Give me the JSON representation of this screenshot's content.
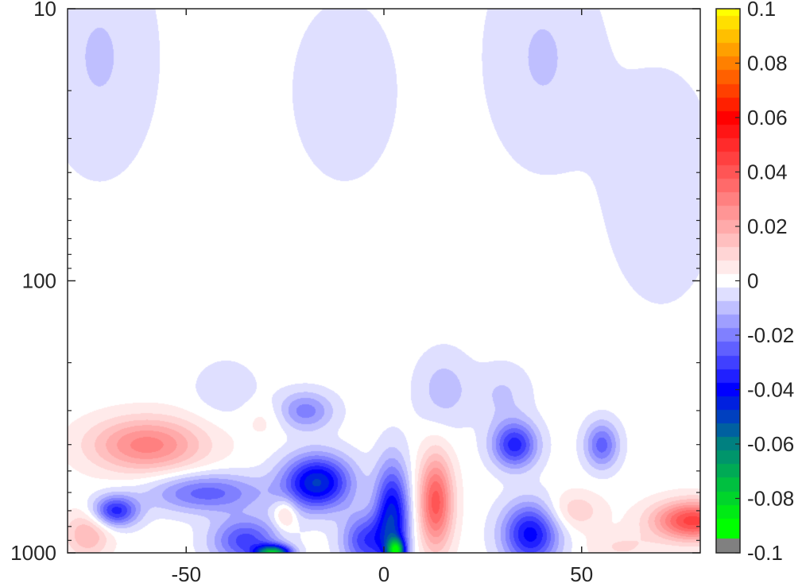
{
  "chart_data": {
    "type": "heatmap",
    "title": "",
    "xlabel": "",
    "ylabel": "",
    "xlim": [
      -80,
      80
    ],
    "ylim": [
      10,
      1000
    ],
    "y_scale": "log",
    "y_reversed": true,
    "x_ticks": [
      -50,
      0,
      50
    ],
    "x_tick_labels": [
      "-50",
      "0",
      "50"
    ],
    "y_ticks": [
      10,
      100,
      1000
    ],
    "y_tick_labels": [
      "10",
      "100",
      "1000"
    ],
    "grid": false,
    "colorbar": {
      "placement": "right",
      "range": [
        -0.1,
        0.1
      ],
      "ticks": [
        0.1,
        0.08,
        0.06,
        0.04,
        0.02,
        0,
        -0.02,
        -0.04,
        -0.06,
        -0.08,
        -0.1
      ],
      "tick_labels": [
        "0.1",
        "0.08",
        "0.06",
        "0.04",
        "0.02",
        "0",
        "-0.02",
        "-0.04",
        "-0.06",
        "-0.08",
        "-0.1"
      ],
      "stops": [
        {
          "value": 0.1,
          "color": "#ffff00"
        },
        {
          "value": 0.08,
          "color": "#ff8000"
        },
        {
          "value": 0.06,
          "color": "#ff0000"
        },
        {
          "value": 0.0,
          "color": "#ffffff"
        },
        {
          "value": -0.04,
          "color": "#0000ff"
        },
        {
          "value": -0.06,
          "color": "#008080"
        },
        {
          "value": -0.09,
          "color": "#00ff00"
        }
      ],
      "below_min_color": "#808080"
    },
    "features": [
      {
        "x": -72,
        "p": 15,
        "sx": 10,
        "sy": 0.3,
        "v": -0.008
      },
      {
        "x": -10,
        "p": 20,
        "sx": 10,
        "sy": 0.25,
        "v": -0.006
      },
      {
        "x": 40,
        "p": 15,
        "sx": 10,
        "sy": 0.28,
        "v": -0.008
      },
      {
        "x": 70,
        "p": 45,
        "sx": 10,
        "sy": 0.3,
        "v": -0.007
      },
      {
        "x": -40,
        "p": 250,
        "sx": 6,
        "sy": 0.08,
        "v": -0.006
      },
      {
        "x": 15,
        "p": 250,
        "sx": 5,
        "sy": 0.1,
        "v": -0.01
      },
      {
        "x": 30,
        "p": 260,
        "sx": 5,
        "sy": 0.08,
        "v": -0.008
      },
      {
        "x": -60,
        "p": 400,
        "sx": 10,
        "sy": 0.07,
        "v": 0.03
      },
      {
        "x": -20,
        "p": 300,
        "sx": 5,
        "sy": 0.05,
        "v": -0.02
      },
      {
        "x": -17,
        "p": 550,
        "sx": 6,
        "sy": 0.07,
        "v": -0.048
      },
      {
        "x": -45,
        "p": 600,
        "sx": 10,
        "sy": 0.05,
        "v": -0.025
      },
      {
        "x": -68,
        "p": 700,
        "sx": 4,
        "sy": 0.04,
        "v": -0.035
      },
      {
        "x": 2,
        "p": 750,
        "sx": 3,
        "sy": 0.14,
        "v": -0.045
      },
      {
        "x": 13,
        "p": 650,
        "sx": 3,
        "sy": 0.12,
        "v": 0.04
      },
      {
        "x": 33,
        "p": 400,
        "sx": 4,
        "sy": 0.06,
        "v": -0.035
      },
      {
        "x": 37,
        "p": 850,
        "sx": 5,
        "sy": 0.08,
        "v": -0.04
      },
      {
        "x": 55,
        "p": 400,
        "sx": 3,
        "sy": 0.06,
        "v": -0.025
      },
      {
        "x": 78,
        "p": 760,
        "sx": 7,
        "sy": 0.05,
        "v": 0.045
      },
      {
        "x": 48,
        "p": 700,
        "sx": 5,
        "sy": 0.05,
        "v": 0.012
      },
      {
        "x": -75,
        "p": 850,
        "sx": 4,
        "sy": 0.06,
        "v": 0.018
      },
      {
        "x": -28,
        "p": 1000,
        "sx": 3,
        "sy": 0.02,
        "v": -0.07
      },
      {
        "x": 3,
        "p": 980,
        "sx": 1.5,
        "sy": 0.03,
        "v": -0.06
      },
      {
        "x": -35,
        "p": 900,
        "sx": 6,
        "sy": 0.06,
        "v": -0.03
      },
      {
        "x": -5,
        "p": 900,
        "sx": 4,
        "sy": 0.07,
        "v": -0.03
      },
      {
        "x": -25,
        "p": 720,
        "sx": 2,
        "sy": 0.04,
        "v": 0.015
      },
      {
        "x": 60,
        "p": 950,
        "sx": 6,
        "sy": 0.04,
        "v": 0.008
      },
      {
        "x": -30,
        "p": 320,
        "sx": 4,
        "sy": 0.05,
        "v": 0.005
      }
    ]
  }
}
